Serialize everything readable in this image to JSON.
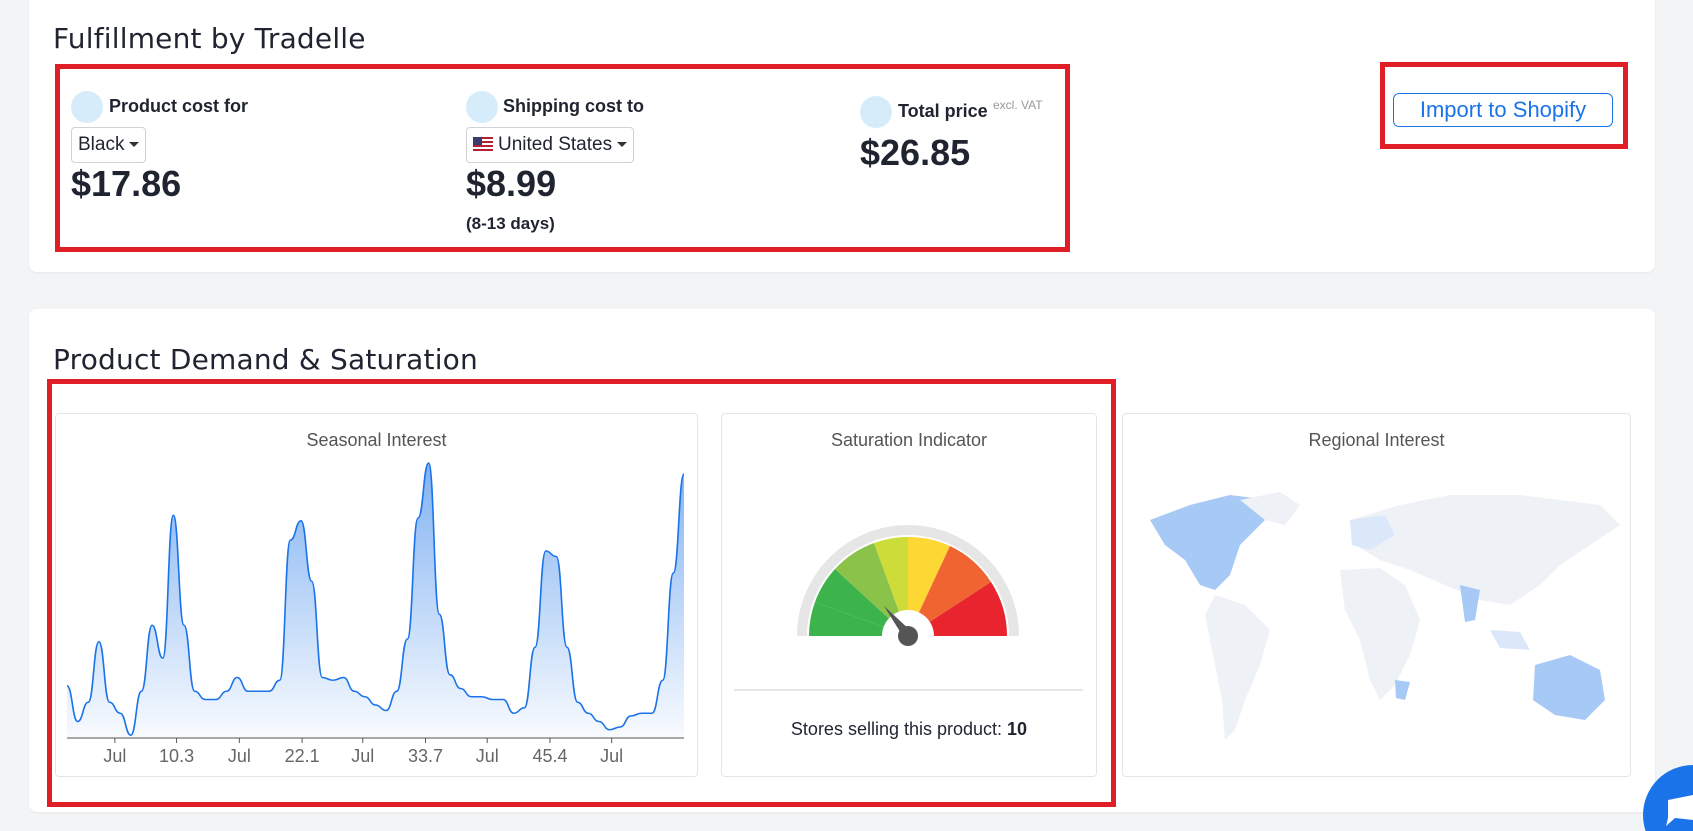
{
  "fulfillment": {
    "title": "Fulfillment by Tradelle",
    "product_cost": {
      "label": "Product cost for",
      "select": "Black",
      "price": "$17.86"
    },
    "shipping": {
      "label": "Shipping cost to",
      "select": "United States",
      "price": "$8.99",
      "days": "(8-13 days)"
    },
    "total": {
      "label": "Total price",
      "note": "excl. VAT",
      "price": "$26.85"
    },
    "button": "Import to Shopify"
  },
  "demand": {
    "title": "Product Demand & Saturation",
    "chart_data": {
      "type": "line",
      "title": "Seasonal Interest",
      "color": "#1a73e8",
      "values": [
        19,
        6,
        13,
        35,
        13,
        9,
        1,
        17,
        41,
        29,
        81,
        41,
        17,
        14,
        14,
        17,
        22,
        17,
        17,
        17,
        21,
        72,
        79,
        57,
        22,
        21,
        22,
        17,
        15,
        12,
        10,
        17,
        36,
        80,
        100,
        45,
        23,
        18,
        15,
        15,
        14,
        14,
        9,
        11,
        33,
        68,
        66,
        33,
        13,
        9,
        6,
        3,
        4,
        8,
        9,
        9,
        21,
        60,
        96
      ],
      "xlim": [
        0,
        58
      ],
      "ylim": [
        0,
        100
      ],
      "xticks": [
        {
          "value": 4.5,
          "label": "Jul"
        },
        10.3,
        {
          "value": 16.2,
          "label": "Jul"
        },
        22.1,
        {
          "value": 27.8,
          "label": "Jul"
        },
        33.7,
        {
          "value": 39.5,
          "label": "Jul"
        },
        45.4,
        {
          "value": 51.2,
          "label": "Jul"
        }
      ]
    },
    "saturation": {
      "title": "Saturation Indicator",
      "stores_label": "Stores selling this product:",
      "stores_value": "10"
    },
    "regional": {
      "title": "Regional Interest"
    }
  }
}
